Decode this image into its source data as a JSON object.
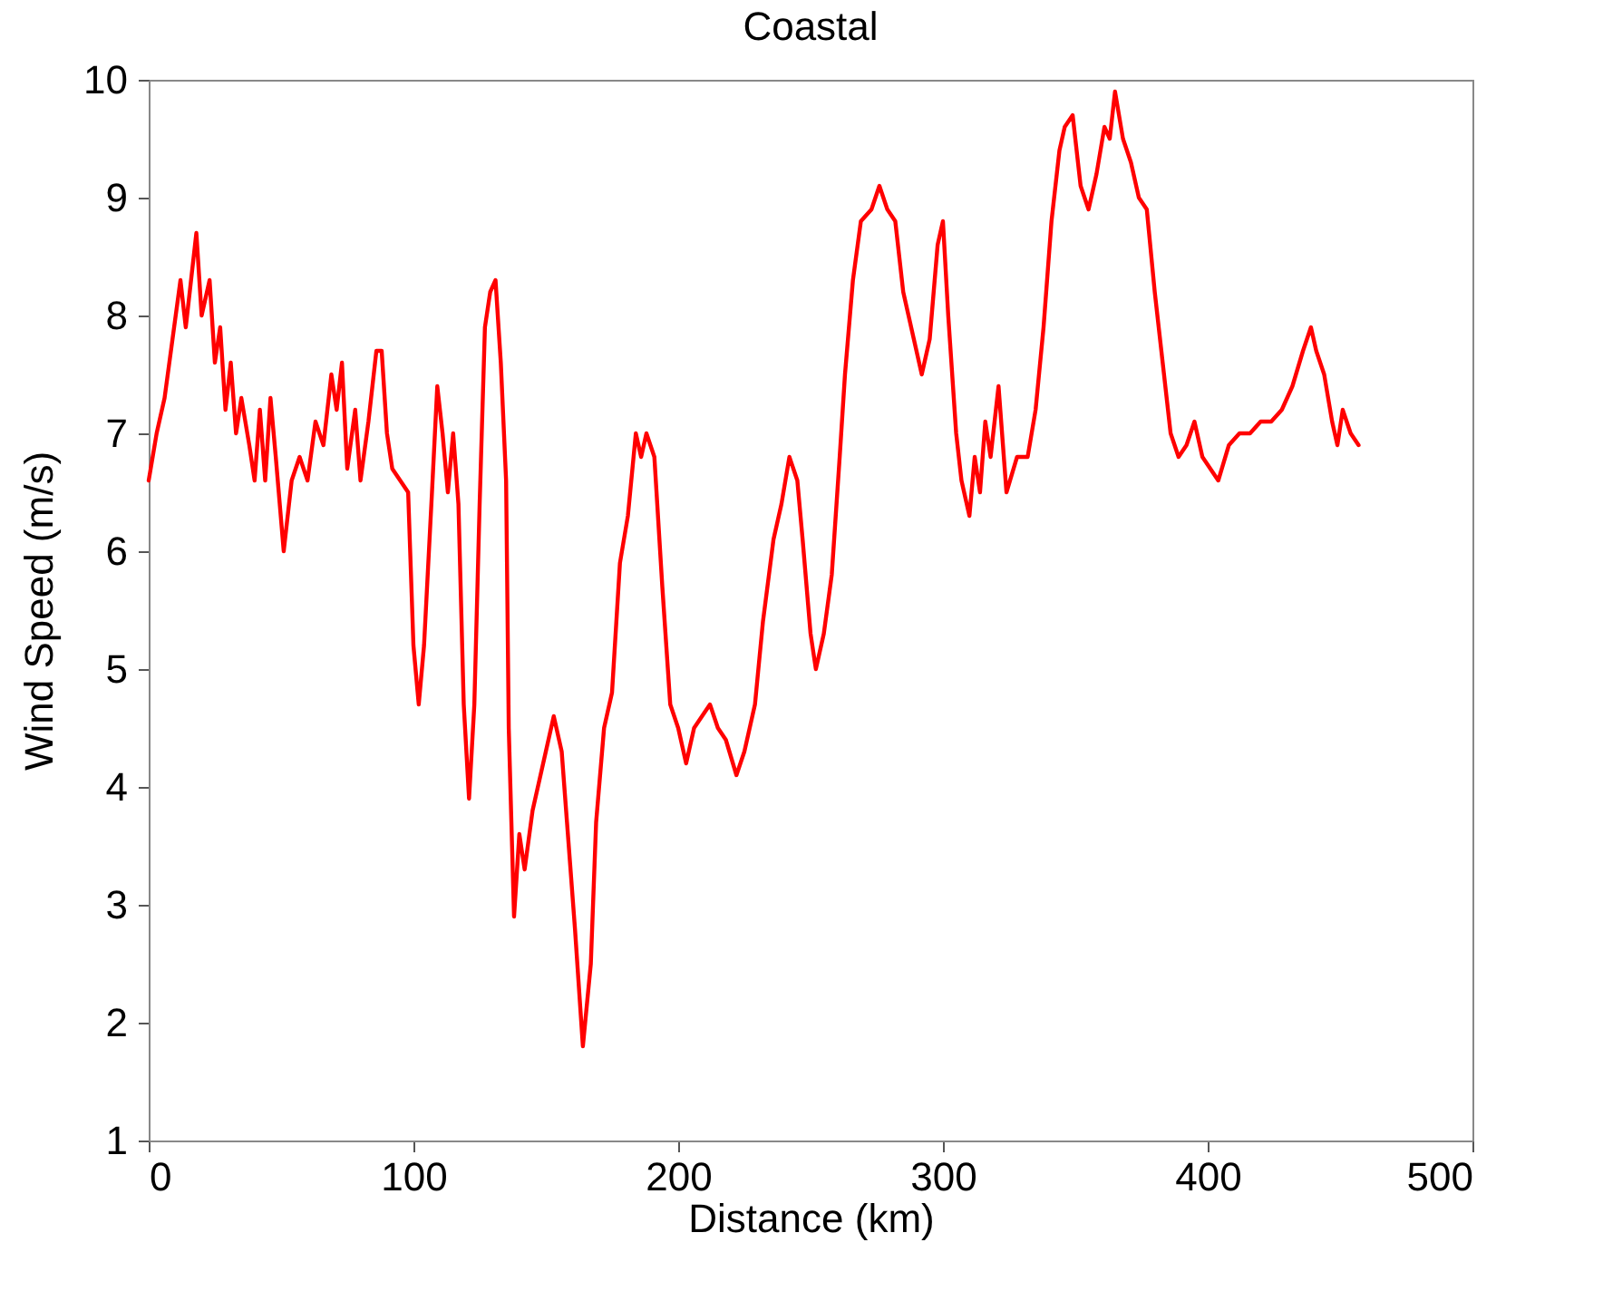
{
  "chart_data": {
    "type": "line",
    "title": "Coastal",
    "xlabel": "Distance (km)",
    "ylabel": "Wind Speed (m/s)",
    "xlim": [
      0,
      500
    ],
    "xticks": [
      0,
      100,
      200,
      300,
      400,
      500
    ],
    "ylim": [
      1,
      10
    ],
    "yticks": [
      1,
      2,
      3,
      4,
      5,
      6,
      7,
      8,
      9,
      10
    ],
    "grid": false,
    "marker": "none",
    "line_style": "solid",
    "x": [
      0,
      3,
      6,
      9,
      12,
      14,
      16,
      18,
      20,
      23,
      25,
      27,
      29,
      31,
      33,
      35,
      38,
      40,
      42,
      44,
      46,
      48,
      51,
      54,
      57,
      60,
      63,
      66,
      69,
      71,
      73,
      75,
      78,
      80,
      83,
      86,
      88,
      90,
      92,
      95,
      98,
      100,
      102,
      104,
      107,
      109,
      111,
      113,
      115,
      117,
      119,
      121,
      123,
      125,
      127,
      129,
      131,
      133,
      135,
      136,
      138,
      140,
      142,
      145,
      148,
      150,
      153,
      156,
      158,
      161,
      164,
      167,
      169,
      172,
      175,
      178,
      181,
      184,
      186,
      188,
      191,
      194,
      197,
      200,
      203,
      206,
      209,
      212,
      215,
      218,
      222,
      225,
      229,
      232,
      236,
      239,
      242,
      245,
      247,
      250,
      252,
      255,
      258,
      261,
      263,
      266,
      269,
      273,
      276,
      279,
      282,
      285,
      287,
      289,
      292,
      295,
      298,
      300,
      302,
      305,
      307,
      310,
      312,
      314,
      316,
      318,
      321,
      324,
      328,
      332,
      335,
      338,
      341,
      344,
      346,
      349,
      352,
      355,
      358,
      361,
      363,
      365,
      368,
      371,
      374,
      377,
      380,
      383,
      386,
      389,
      392,
      395,
      398,
      401,
      404,
      408,
      412,
      416,
      420,
      424,
      428,
      432,
      436,
      439,
      441,
      444,
      447,
      449,
      451,
      454,
      457
    ],
    "series": [
      {
        "color": "#ff0000",
        "values": [
          6.6,
          7.0,
          7.3,
          7.8,
          8.3,
          7.9,
          8.3,
          8.7,
          8.0,
          8.3,
          7.6,
          7.9,
          7.2,
          7.6,
          7.0,
          7.3,
          6.9,
          6.6,
          7.2,
          6.6,
          7.3,
          6.8,
          6.0,
          6.6,
          6.8,
          6.6,
          7.1,
          6.9,
          7.5,
          7.2,
          7.6,
          6.7,
          7.2,
          6.6,
          7.1,
          7.7,
          7.7,
          7.0,
          6.7,
          6.6,
          6.5,
          5.2,
          4.7,
          5.2,
          6.5,
          7.4,
          7.0,
          6.5,
          7.0,
          6.4,
          4.7,
          3.9,
          4.7,
          6.4,
          7.9,
          8.2,
          8.3,
          7.6,
          6.6,
          4.5,
          2.9,
          3.6,
          3.3,
          3.8,
          4.1,
          4.3,
          4.6,
          4.3,
          3.7,
          2.8,
          1.8,
          2.5,
          3.7,
          4.5,
          4.8,
          5.9,
          6.3,
          7.0,
          6.8,
          7.0,
          6.8,
          5.7,
          4.7,
          4.5,
          4.2,
          4.5,
          4.6,
          4.7,
          4.5,
          4.4,
          4.1,
          4.3,
          4.7,
          5.4,
          6.1,
          6.4,
          6.8,
          6.6,
          6.1,
          5.3,
          5.0,
          5.3,
          5.8,
          6.8,
          7.5,
          8.3,
          8.8,
          8.9,
          9.1,
          8.9,
          8.8,
          8.2,
          8.0,
          7.8,
          7.5,
          7.8,
          8.6,
          8.8,
          8.0,
          7.0,
          6.6,
          6.3,
          6.8,
          6.5,
          7.1,
          6.8,
          7.4,
          6.5,
          6.8,
          6.8,
          7.2,
          7.9,
          8.8,
          9.4,
          9.6,
          9.7,
          9.1,
          8.9,
          9.2,
          9.6,
          9.5,
          9.9,
          9.5,
          9.3,
          9.0,
          8.9,
          8.2,
          7.6,
          7.0,
          6.8,
          6.9,
          7.1,
          6.8,
          6.7,
          6.6,
          6.9,
          7.0,
          7.0,
          7.1,
          7.1,
          7.2,
          7.4,
          7.7,
          7.9,
          7.7,
          7.5,
          7.1,
          6.9,
          7.2,
          7.0,
          6.9
        ]
      }
    ]
  }
}
